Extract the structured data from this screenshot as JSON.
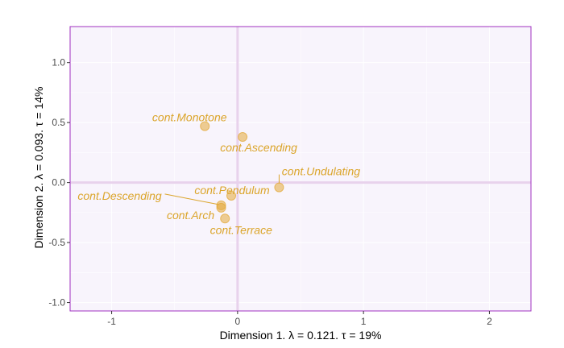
{
  "chart_data": {
    "type": "scatter",
    "title": "",
    "xlabel": "Dimension 1.   λ = 0.121.  τ = 19%",
    "ylabel": "Dimension 2.   λ = 0.093.  τ = 14%",
    "xlim": [
      -1.33,
      2.33
    ],
    "ylim": [
      -1.07,
      1.3
    ],
    "x_ticks": [
      -1,
      0,
      1,
      2
    ],
    "y_ticks": [
      -1.0,
      -0.5,
      0.0,
      0.5,
      1.0
    ],
    "x_tick_labels": [
      "-1",
      "0",
      "1",
      "2"
    ],
    "y_tick_labels": [
      "-1.0",
      "-0.5",
      "0.0",
      "0.5",
      "1.0"
    ],
    "grid": true,
    "legend": "none",
    "colors": {
      "point": "#e3a93a",
      "label": "#dba52b",
      "panel_background": "#f8f4fc",
      "panel_border": "#a030c0",
      "zero_line": "#e8d2ec",
      "grid": "#ffffff"
    },
    "points": [
      {
        "name": "cont.Monotone",
        "x": -0.26,
        "y": 0.47
      },
      {
        "name": "cont.Ascending",
        "x": 0.04,
        "y": 0.38
      },
      {
        "name": "cont.Undulating",
        "x": 0.33,
        "y": -0.04
      },
      {
        "name": "cont.Pendulum",
        "x": -0.05,
        "y": -0.11
      },
      {
        "name": "cont.Descending",
        "x": -0.13,
        "y": -0.19
      },
      {
        "name": "cont.Arch",
        "x": -0.13,
        "y": -0.21
      },
      {
        "name": "cont.Terrace",
        "x": -0.1,
        "y": -0.3
      }
    ]
  }
}
